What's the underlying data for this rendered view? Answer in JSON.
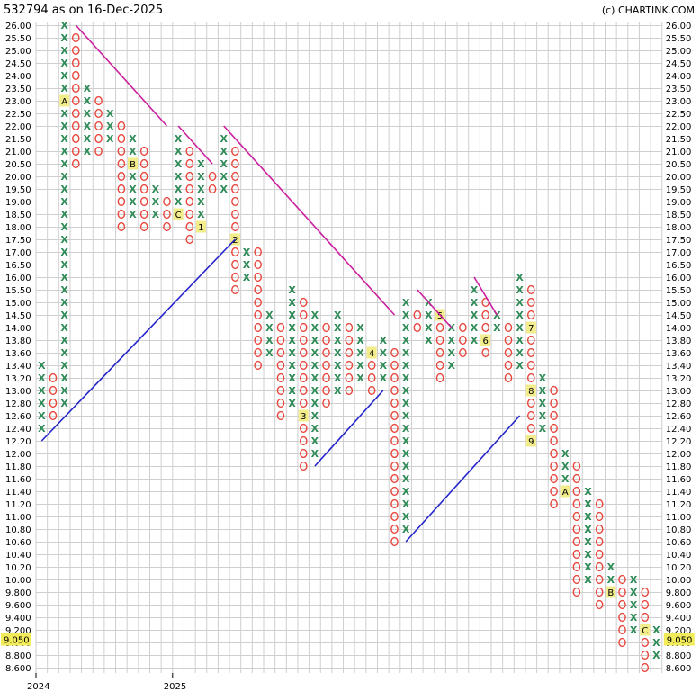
{
  "header": {
    "title": "532794 as on 16-Dec-2025",
    "copyright": "(c) CHARTINK.COM"
  },
  "colors": {
    "x_mark": "#2e8b57",
    "o_mark": "#e8453c",
    "resistance_line": "#cc1f9e",
    "support_line": "#2424cc",
    "highlight": "#f2ec5a"
  },
  "chart_data": {
    "type": "point-and-figure",
    "box_sizes": [
      {
        "from": 8.6,
        "to": 13.6,
        "box": 0.2
      },
      {
        "from": 13.6,
        "to": 26.0,
        "box": 0.5
      }
    ],
    "y_ticks": [
      "26.00",
      "25.50",
      "25.00",
      "24.50",
      "24.00",
      "23.50",
      "23.00",
      "22.50",
      "22.00",
      "21.50",
      "21.00",
      "20.50",
      "20.00",
      "19.50",
      "19.00",
      "18.50",
      "18.00",
      "17.50",
      "17.00",
      "16.50",
      "16.00",
      "15.50",
      "15.00",
      "14.50",
      "14.00",
      "13.80",
      "13.60",
      "13.40",
      "13.20",
      "13.00",
      "12.80",
      "12.60",
      "12.40",
      "12.20",
      "12.00",
      "11.80",
      "11.60",
      "11.40",
      "11.20",
      "11.00",
      "10.80",
      "10.60",
      "10.40",
      "10.20",
      "10.00",
      "9.800",
      "9.600",
      "9.400",
      "9.200",
      "9.000",
      "8.800",
      "8.600"
    ],
    "x_labels": [
      {
        "col": 0,
        "label": "2024"
      },
      {
        "col": 12,
        "label": "2025"
      }
    ],
    "current_price": "9.050",
    "columns": [
      {
        "type": "X",
        "from": "12.40",
        "to": "13.40"
      },
      {
        "type": "O",
        "from": "13.20",
        "to": "12.60"
      },
      {
        "type": "X",
        "from": "12.80",
        "to": "26.00",
        "month_marks": [
          {
            "at": "23.00",
            "label": "A"
          }
        ]
      },
      {
        "type": "O",
        "from": "25.50",
        "to": "20.50"
      },
      {
        "type": "X",
        "from": "21.00",
        "to": "23.50"
      },
      {
        "type": "O",
        "from": "23.00",
        "to": "21.00"
      },
      {
        "type": "X",
        "from": "21.50",
        "to": "22.50"
      },
      {
        "type": "O",
        "from": "22.00",
        "to": "18.00"
      },
      {
        "type": "X",
        "from": "18.50",
        "to": "21.50",
        "month_marks": [
          {
            "at": "20.50",
            "label": "B"
          }
        ]
      },
      {
        "type": "O",
        "from": "21.00",
        "to": "18.00"
      },
      {
        "type": "X",
        "from": "18.50",
        "to": "19.50"
      },
      {
        "type": "O",
        "from": "19.00",
        "to": "18.00"
      },
      {
        "type": "X",
        "from": "18.50",
        "to": "21.50",
        "month_marks": [
          {
            "at": "18.50",
            "label": "C"
          }
        ]
      },
      {
        "type": "O",
        "from": "21.00",
        "to": "17.50"
      },
      {
        "type": "X",
        "from": "18.00",
        "to": "20.50",
        "month_marks": [
          {
            "at": "18.00",
            "label": "1"
          }
        ]
      },
      {
        "type": "O",
        "from": "20.00",
        "to": "19.50"
      },
      {
        "type": "X",
        "from": "19.50",
        "to": "21.50"
      },
      {
        "type": "O",
        "from": "21.00",
        "to": "15.50",
        "month_marks": [
          {
            "at": "17.50",
            "label": "2"
          }
        ]
      },
      {
        "type": "X",
        "from": "16.00",
        "to": "17.00"
      },
      {
        "type": "O",
        "from": "17.00",
        "to": "13.40"
      },
      {
        "type": "X",
        "from": "13.60",
        "to": "14.50"
      },
      {
        "type": "O",
        "from": "14.00",
        "to": "12.60"
      },
      {
        "type": "X",
        "from": "12.80",
        "to": "15.50"
      },
      {
        "type": "O",
        "from": "15.00",
        "to": "11.80",
        "month_marks": [
          {
            "at": "12.60",
            "label": "3"
          }
        ]
      },
      {
        "type": "X",
        "from": "12.00",
        "to": "14.50"
      },
      {
        "type": "O",
        "from": "14.00",
        "to": "12.80"
      },
      {
        "type": "X",
        "from": "13.00",
        "to": "14.50"
      },
      {
        "type": "O",
        "from": "14.00",
        "to": "13.00"
      },
      {
        "type": "X",
        "from": "13.20",
        "to": "14.00"
      },
      {
        "type": "O",
        "from": "13.60",
        "to": "13.00",
        "month_marks": [
          {
            "at": "13.60",
            "label": "4"
          }
        ]
      },
      {
        "type": "X",
        "from": "13.20",
        "to": "13.80"
      },
      {
        "type": "O",
        "from": "13.60",
        "to": "10.60"
      },
      {
        "type": "X",
        "from": "10.80",
        "to": "15.00"
      },
      {
        "type": "O",
        "from": "14.50",
        "to": "14.00"
      },
      {
        "type": "X",
        "from": "13.80",
        "to": "15.00"
      },
      {
        "type": "O",
        "from": "14.50",
        "to": "13.20",
        "month_marks": [
          {
            "at": "14.50",
            "label": "5"
          }
        ]
      },
      {
        "type": "X",
        "from": "13.40",
        "to": "14.00"
      },
      {
        "type": "O",
        "from": "14.00",
        "to": "13.60"
      },
      {
        "type": "X",
        "from": "13.80",
        "to": "15.50"
      },
      {
        "type": "O",
        "from": "15.00",
        "to": "13.60",
        "month_marks": [
          {
            "at": "13.80",
            "label": "6"
          }
        ]
      },
      {
        "type": "X",
        "from": "14.00",
        "to": "14.50"
      },
      {
        "type": "O",
        "from": "14.00",
        "to": "13.20"
      },
      {
        "type": "X",
        "from": "13.40",
        "to": "16.00"
      },
      {
        "type": "O",
        "from": "15.50",
        "to": "12.20",
        "month_marks": [
          {
            "at": "14.00",
            "label": "7"
          },
          {
            "at": "13.00",
            "label": "8"
          },
          {
            "at": "12.20",
            "label": "9"
          }
        ]
      },
      {
        "type": "X",
        "from": "12.40",
        "to": "13.20"
      },
      {
        "type": "O",
        "from": "13.00",
        "to": "11.20"
      },
      {
        "type": "X",
        "from": "11.40",
        "to": "12.00",
        "month_marks": [
          {
            "at": "11.40",
            "label": "A"
          }
        ]
      },
      {
        "type": "O",
        "from": "11.80",
        "to": "9.800"
      },
      {
        "type": "X",
        "from": "10.00",
        "to": "11.40"
      },
      {
        "type": "O",
        "from": "11.20",
        "to": "9.600"
      },
      {
        "type": "X",
        "from": "9.800",
        "to": "10.20",
        "month_marks": [
          {
            "at": "9.800",
            "label": "B"
          }
        ]
      },
      {
        "type": "O",
        "from": "10.00",
        "to": "9.000"
      },
      {
        "type": "X",
        "from": "9.200",
        "to": "10.00"
      },
      {
        "type": "O",
        "from": "9.800",
        "to": "8.600",
        "month_marks": [
          {
            "at": "9.200",
            "label": "C"
          }
        ]
      },
      {
        "type": "X",
        "from": "8.800",
        "to": "9.200"
      }
    ],
    "trendlines": [
      {
        "kind": "resistance",
        "from": {
          "col": 3,
          "price": "26.00"
        },
        "to": {
          "col": 11,
          "price": "22.00"
        }
      },
      {
        "kind": "resistance",
        "from": {
          "col": 12,
          "price": "22.00"
        },
        "to": {
          "col": 15,
          "price": "20.50"
        }
      },
      {
        "kind": "resistance",
        "from": {
          "col": 16,
          "price": "22.00"
        },
        "to": {
          "col": 31,
          "price": "14.50"
        }
      },
      {
        "kind": "resistance",
        "from": {
          "col": 33,
          "price": "15.50"
        },
        "to": {
          "col": 36,
          "price": "14.00"
        }
      },
      {
        "kind": "resistance",
        "from": {
          "col": 38,
          "price": "16.00"
        },
        "to": {
          "col": 40,
          "price": "14.50"
        }
      },
      {
        "kind": "support",
        "from": {
          "col": 0,
          "price": "12.20"
        },
        "to": {
          "col": 17,
          "price": "17.50"
        }
      },
      {
        "kind": "support",
        "from": {
          "col": 24,
          "price": "11.80"
        },
        "to": {
          "col": 30,
          "price": "13.00"
        }
      },
      {
        "kind": "support",
        "from": {
          "col": 32,
          "price": "10.60"
        },
        "to": {
          "col": 42,
          "price": "12.60"
        }
      }
    ]
  }
}
